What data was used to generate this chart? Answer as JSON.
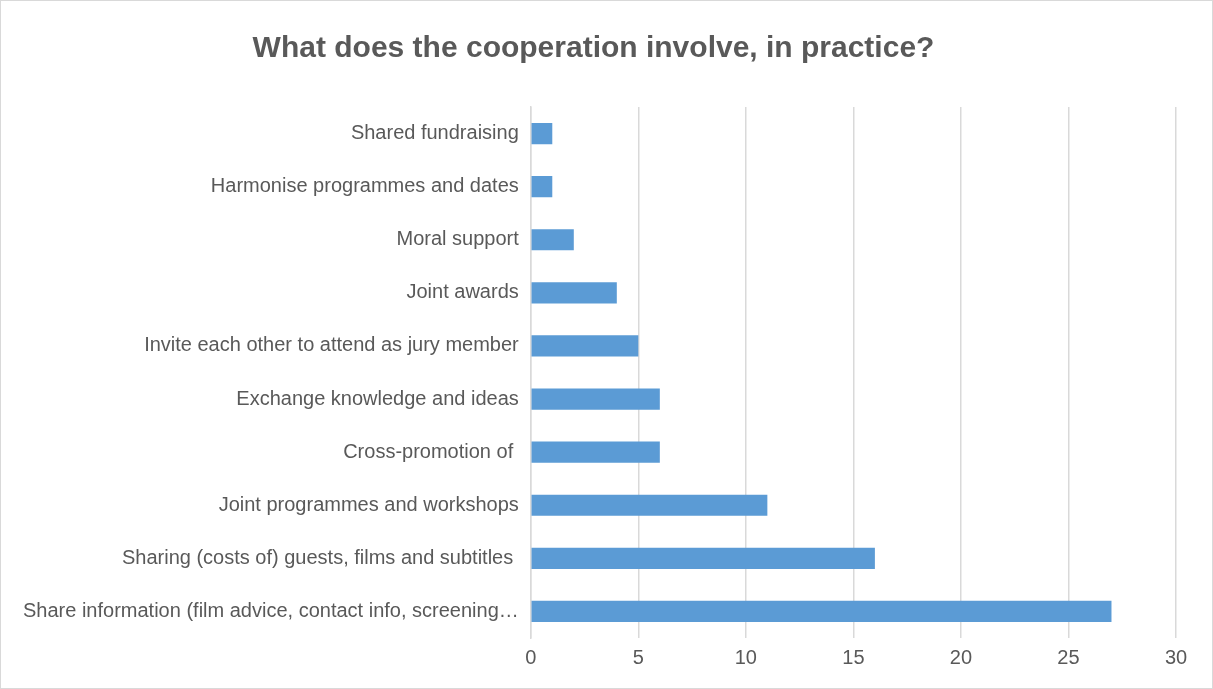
{
  "chart_data": {
    "type": "bar",
    "orientation": "horizontal",
    "title": "What does the cooperation involve, in practice?",
    "categories": [
      "Shared fundraising",
      "Harmonise programmes and dates",
      "Moral support",
      "Joint awards",
      "Invite each other to attend as jury member",
      "Exchange knowledge and ideas",
      "Cross-promotion of ",
      "Joint programmes and workshops",
      "Sharing (costs of) guests, films and subtitles ",
      "Share information (film advice, contact info, screening…"
    ],
    "values": [
      1,
      1,
      2,
      4,
      5,
      6,
      6,
      11,
      16,
      27
    ],
    "color": "#5b9bd5",
    "xlim": [
      0,
      30
    ],
    "xticks": [
      0,
      5,
      10,
      15,
      20,
      25,
      30
    ],
    "grid": "x",
    "legend": false
  }
}
